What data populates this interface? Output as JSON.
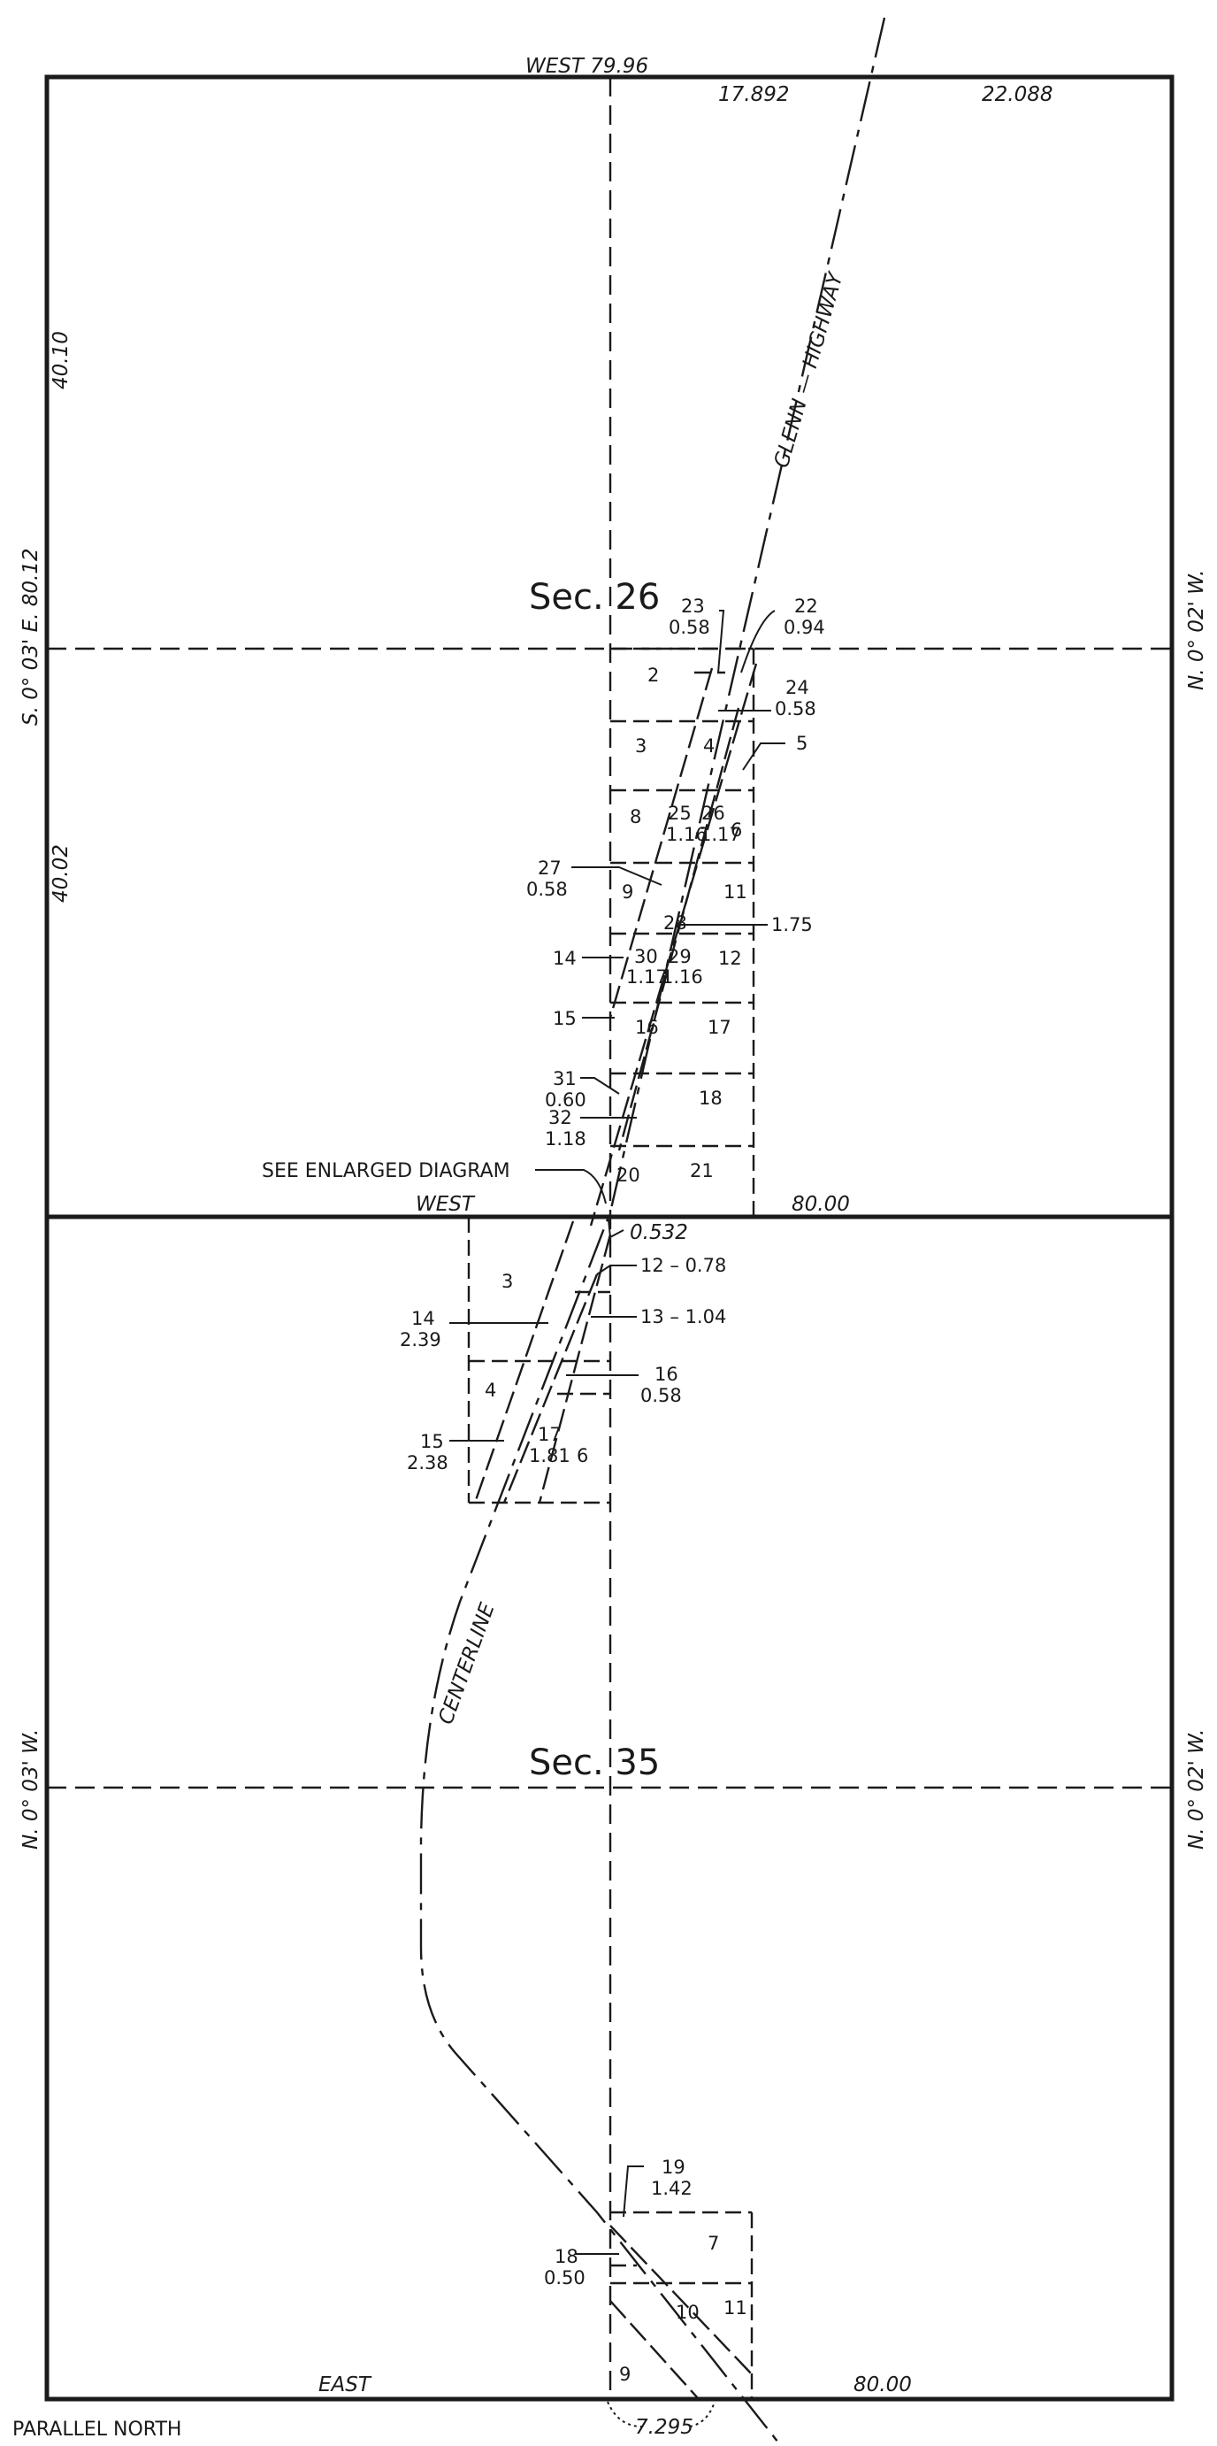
{
  "plat": {
    "sections": [
      "Sec. 26",
      "Sec. 35"
    ],
    "boundaries": {
      "top": "WEST  79.96",
      "top_seg_a": "17.892",
      "top_seg_b": "22.088",
      "mid_left": "WEST",
      "mid_right": "80.00",
      "bottom_left": "EAST",
      "bottom_right": "80.00",
      "left_upper_bearing": "S. 0° 03' E.   80.12",
      "left_upper_a": "40.10",
      "left_upper_b": "40.02",
      "left_lower_bearing": "N. 0° 03' W.",
      "right_upper_bearing": "N. 0° 02' W.",
      "right_lower_bearing": "N. 0° 02' W.",
      "bottom_offset": "7.295",
      "parallel": "PARALLEL  NORTH"
    },
    "road": {
      "highway": "GLENN — HIGHWAY",
      "centerline": "CENTERLINE"
    },
    "notes": {
      "see_diagram": "SEE  ENLARGED  DIAGRAM",
      "offset": "0.532"
    },
    "lots_upper": [
      "2",
      "3",
      "4",
      "8",
      "9",
      "11",
      "12",
      "16",
      "17",
      "18",
      "20",
      "21",
      "6"
    ],
    "parcels_upper": {
      "p23": "23",
      "p23a": "0.58",
      "p22": "22",
      "p22a": "0.94",
      "p24": "24",
      "p24a": "0.58",
      "p5": "5",
      "p25": "25",
      "p25a": "1.16",
      "p26": "26",
      "p26a": "1.17",
      "p27": "27",
      "p27a": "0.58",
      "p28": "28",
      "p28a": "1.75",
      "p14": "14",
      "p30": "30",
      "p30a": "1.17",
      "p29": "29",
      "p29a": "1.16",
      "p15": "15",
      "p31": "31",
      "p31a": "0.60",
      "p32": "32",
      "p32a": "1.18"
    },
    "parcels_mid": {
      "l3": "3",
      "p12": "12 – 0.78",
      "p13": "13 – 1.04",
      "p14": "14",
      "p14a": "2.39",
      "l4": "4",
      "p16": "16",
      "p16a": "0.58",
      "p15": "15",
      "p15a": "2.38",
      "p17": "17",
      "p17a": "1.81",
      "l6": "6"
    },
    "parcels_lower": {
      "p19": "19",
      "p19a": "1.42",
      "l7": "7",
      "p18": "18",
      "p18a": "0.50",
      "l10": "10",
      "l11": "11",
      "l9": "9"
    }
  }
}
